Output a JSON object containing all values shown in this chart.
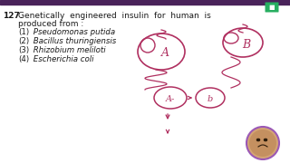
{
  "question_number": "127.",
  "question_line1": "Genetically  engineered  insulin  for  human  is",
  "question_line2": "produced from :",
  "options": [
    "(1) Pseudomonas putida",
    "(2) Bacillus thuringiensis",
    "(3) Rhizobium meliloti",
    "(4) Escherichia coli"
  ],
  "bg_color": "#ffffff",
  "text_color": "#1a1a1a",
  "diagram_color": "#b03060",
  "top_bar_color": "#4a235a",
  "font_size_q": 6.5,
  "font_size_opt": 6.2,
  "webcam_face_color": "#8B5E3C",
  "webcam_border_color": "#9b59b6"
}
